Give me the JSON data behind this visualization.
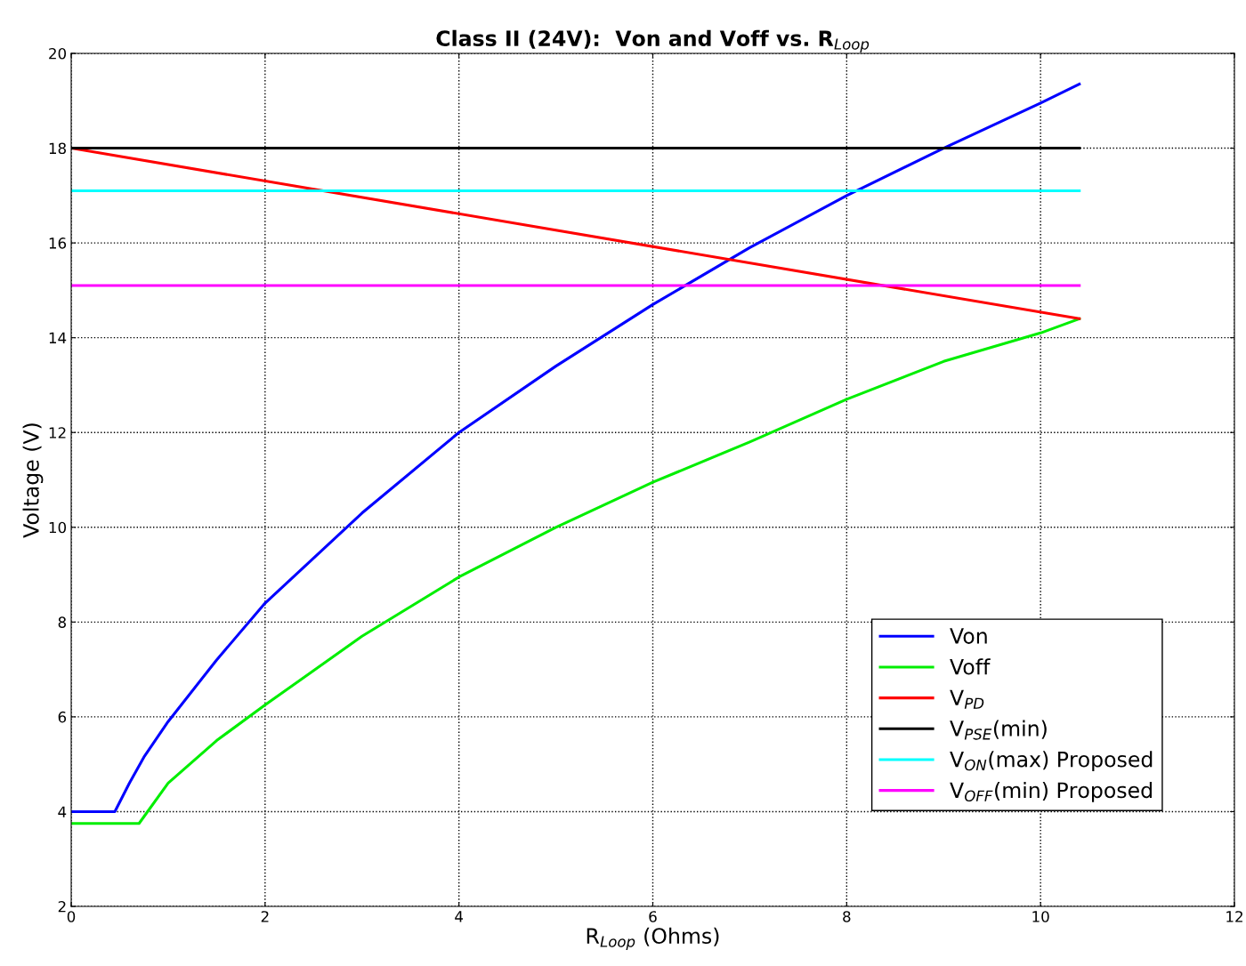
{
  "chart_data": {
    "type": "line",
    "title": "Class II (24V):  Von and Voff vs. R$_{Loop}$",
    "xlabel": "R$_{Loop}$ (Ohms)",
    "ylabel": "Voltage (V)",
    "xlim": [
      0,
      12
    ],
    "xticks": [
      0,
      2,
      4,
      6,
      8,
      10,
      12
    ],
    "ylim": [
      2,
      20
    ],
    "yticks": [
      2,
      4,
      6,
      8,
      10,
      12,
      14,
      16,
      18,
      20
    ],
    "grid": true,
    "legend": "bottom right",
    "line_style": "solid",
    "marker": "none",
    "series": [
      {
        "name": "Von",
        "color": "#0000ff",
        "x": [
          0,
          0.45,
          0.6,
          0.75,
          1,
          1.5,
          2,
          3,
          4,
          5,
          6,
          7,
          8,
          9,
          10,
          10.4
        ],
        "values": [
          4,
          4,
          4.6,
          5.15,
          5.9,
          7.2,
          8.4,
          10.3,
          12.0,
          13.4,
          14.7,
          15.9,
          17.0,
          18.0,
          18.95,
          19.35
        ]
      },
      {
        "name": "Voff",
        "color": "#00ee00",
        "x": [
          0,
          0.7,
          1,
          1.5,
          2,
          3,
          4,
          5,
          6,
          7,
          8,
          9,
          10,
          10.4
        ],
        "values": [
          3.75,
          3.75,
          4.6,
          5.5,
          6.25,
          7.7,
          8.95,
          10.0,
          10.95,
          11.8,
          12.7,
          13.5,
          14.1,
          14.4
        ]
      },
      {
        "name": "V$_{PD}$",
        "color": "#ff0000",
        "x": [
          0,
          10.4
        ],
        "values": [
          18,
          14.4
        ]
      },
      {
        "name": "V$_{PSE}$(min)",
        "color": "#000000",
        "x": [
          0,
          10.4
        ],
        "values": [
          18,
          18
        ]
      },
      {
        "name": "V$_{ON}$(max) Proposed",
        "color": "#00ffff",
        "x": [
          0,
          10.4
        ],
        "values": [
          17.1,
          17.1
        ]
      },
      {
        "name": "V$_{OFF}$(min) Proposed",
        "color": "#ff00ff",
        "x": [
          0,
          10.4
        ],
        "values": [
          15.1,
          15.1
        ]
      }
    ]
  }
}
